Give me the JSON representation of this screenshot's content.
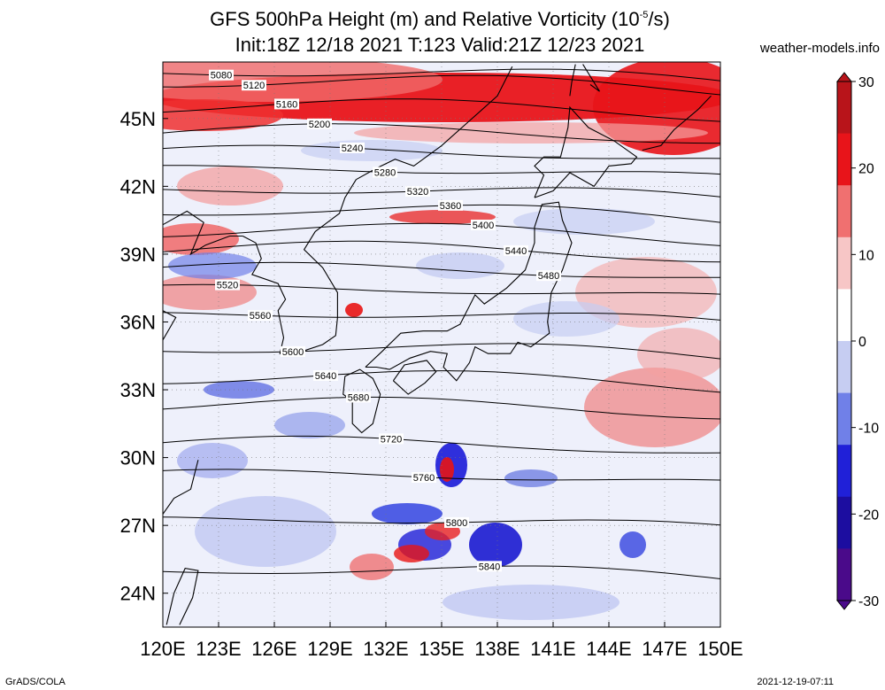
{
  "title": {
    "line1": "GFS 500hPa Height (m) and Relative Vorticity (10",
    "line1_sup": "-5",
    "line1_end": "/s)",
    "line2": "Init:18Z 12/18 2021 T:123 Valid:21Z 12/23 2021"
  },
  "site": "weather-models.info",
  "footer": {
    "left": "GrADS/COLA",
    "right": "2021-12-19-07:11"
  },
  "map": {
    "lon_range": [
      120,
      150
    ],
    "lat_range": [
      22.5,
      47.5
    ],
    "lon_ticks": [
      "120E",
      "123E",
      "126E",
      "129E",
      "132E",
      "135E",
      "138E",
      "141E",
      "144E",
      "147E",
      "150E"
    ],
    "lat_ticks": [
      "24N",
      "27N",
      "30N",
      "33N",
      "36N",
      "39N",
      "42N",
      "45N"
    ],
    "lat_tick_values": [
      24,
      27,
      30,
      33,
      36,
      39,
      42,
      45
    ],
    "colorbar": {
      "labels": [
        "30",
        "20",
        "10",
        "0",
        "-10",
        "-20",
        "-30"
      ],
      "colors": [
        "#b8141a",
        "#e8141a",
        "#f07070",
        "#f7c6c6",
        "#ffffff",
        "#c6cdf2",
        "#7080e8",
        "#2020d8",
        "#1c0da0",
        "#4a0a8a"
      ]
    },
    "contours": [
      {
        "label": "5080",
        "lat": 46.8
      },
      {
        "label": "5120",
        "lat": 46.4
      },
      {
        "label": "5160",
        "lat": 45.3
      },
      {
        "label": "5200",
        "lat": 44.2
      },
      {
        "label": "5240",
        "lat": 43.3
      },
      {
        "label": "5280",
        "lat": 42.5
      },
      {
        "label": "5320",
        "lat": 41.6
      },
      {
        "label": "5360",
        "lat": 40.7
      },
      {
        "label": "5400",
        "lat": 39.8
      },
      {
        "label": "5440",
        "lat": 39.0
      },
      {
        "label": "5480",
        "lat": 38.1
      },
      {
        "label": "5520",
        "lat": 37.2
      },
      {
        "label": "5560",
        "lat": 36.1
      },
      {
        "label": "5600",
        "lat": 34.6
      },
      {
        "label": "5640",
        "lat": 33.3
      },
      {
        "label": "5680",
        "lat": 32.1
      },
      {
        "label": "5720",
        "lat": 30.4
      },
      {
        "label": "5760",
        "lat": 29.0
      },
      {
        "label": "5800",
        "lat": 27.0
      },
      {
        "label": "5840",
        "lat": 24.8
      }
    ]
  }
}
